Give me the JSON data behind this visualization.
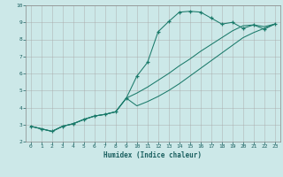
{
  "title": "",
  "xlabel": "Humidex (Indice chaleur)",
  "bg_color": "#cce8e8",
  "line_color": "#1a7a6a",
  "grid_color": "#aaaaaa",
  "xlim": [
    -0.5,
    23.5
  ],
  "ylim": [
    2,
    10
  ],
  "xticks": [
    0,
    1,
    2,
    3,
    4,
    5,
    6,
    7,
    8,
    9,
    10,
    11,
    12,
    13,
    14,
    15,
    16,
    17,
    18,
    19,
    20,
    21,
    22,
    23
  ],
  "yticks": [
    2,
    3,
    4,
    5,
    6,
    7,
    8,
    9,
    10
  ],
  "line1_x": [
    0,
    1,
    2,
    3,
    4,
    5,
    6,
    7,
    8,
    9,
    10,
    11,
    12,
    13,
    14,
    15,
    16,
    17,
    18,
    19,
    20,
    21,
    22,
    23
  ],
  "line1_y": [
    2.9,
    2.75,
    2.6,
    2.9,
    3.05,
    3.3,
    3.5,
    3.6,
    3.75,
    4.55,
    5.85,
    6.65,
    8.45,
    9.05,
    9.6,
    9.65,
    9.6,
    9.25,
    8.9,
    9.0,
    8.65,
    8.85,
    8.6,
    8.9
  ],
  "line2_x": [
    0,
    1,
    2,
    3,
    4,
    5,
    6,
    7,
    8,
    9,
    10,
    11,
    12,
    13,
    14,
    15,
    16,
    17,
    18,
    19,
    20,
    21,
    22,
    23
  ],
  "line2_y": [
    2.9,
    2.75,
    2.6,
    2.9,
    3.05,
    3.3,
    3.5,
    3.6,
    3.75,
    4.55,
    4.85,
    5.2,
    5.6,
    6.0,
    6.45,
    6.85,
    7.3,
    7.7,
    8.1,
    8.5,
    8.8,
    8.85,
    8.75,
    8.9
  ],
  "line3_x": [
    0,
    1,
    2,
    3,
    4,
    5,
    6,
    7,
    8,
    9,
    10,
    11,
    12,
    13,
    14,
    15,
    16,
    17,
    18,
    19,
    20,
    21,
    22,
    23
  ],
  "line3_y": [
    2.9,
    2.75,
    2.6,
    2.9,
    3.05,
    3.3,
    3.5,
    3.6,
    3.75,
    4.55,
    4.1,
    4.35,
    4.65,
    5.0,
    5.4,
    5.85,
    6.3,
    6.75,
    7.2,
    7.65,
    8.1,
    8.4,
    8.65,
    8.9
  ]
}
